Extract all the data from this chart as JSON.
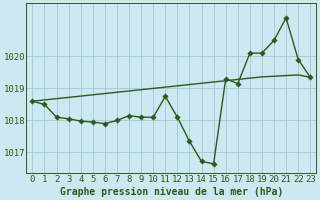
{
  "xlabel": "Graphe pression niveau de la mer (hPa)",
  "x": [
    0,
    1,
    2,
    3,
    4,
    5,
    6,
    7,
    8,
    9,
    10,
    11,
    12,
    13,
    14,
    15,
    16,
    17,
    18,
    19,
    20,
    21,
    22,
    23
  ],
  "line_main": [
    1018.6,
    1018.5,
    1018.1,
    1018.05,
    1017.98,
    1017.95,
    1017.9,
    1018.0,
    1018.15,
    1018.1,
    1018.1,
    1018.75,
    1018.1,
    1017.35,
    1016.72,
    1016.65,
    1019.3,
    1019.15,
    1020.1,
    1020.1,
    1020.5,
    1021.2,
    1019.9,
    1019.35
  ],
  "line_trend_x": [
    0,
    1,
    2,
    3,
    4,
    5,
    6,
    7,
    8,
    9,
    10,
    11,
    12,
    13,
    14,
    15,
    16,
    17,
    18,
    19,
    20,
    21,
    22,
    23
  ],
  "line_trend_y": [
    1018.6,
    1018.64,
    1018.68,
    1018.72,
    1018.76,
    1018.8,
    1018.84,
    1018.88,
    1018.92,
    1018.96,
    1019.0,
    1019.04,
    1019.08,
    1019.12,
    1019.16,
    1019.2,
    1019.24,
    1019.28,
    1019.32,
    1019.36,
    1019.38,
    1019.4,
    1019.42,
    1019.35
  ],
  "line_color": "#2d5a1b",
  "bg_color": "#cce8f0",
  "grid_color": "#a0c8d8",
  "ylim_min": 1016.35,
  "ylim_max": 1021.65,
  "yticks": [
    1017,
    1018,
    1019,
    1020
  ],
  "xticks": [
    0,
    1,
    2,
    3,
    4,
    5,
    6,
    7,
    8,
    9,
    10,
    11,
    12,
    13,
    14,
    15,
    16,
    17,
    18,
    19,
    20,
    21,
    22,
    23
  ],
  "markersize": 2.8,
  "linewidth": 1.0,
  "fontsize_xlabel": 7,
  "fontsize_ticks": 6.5
}
